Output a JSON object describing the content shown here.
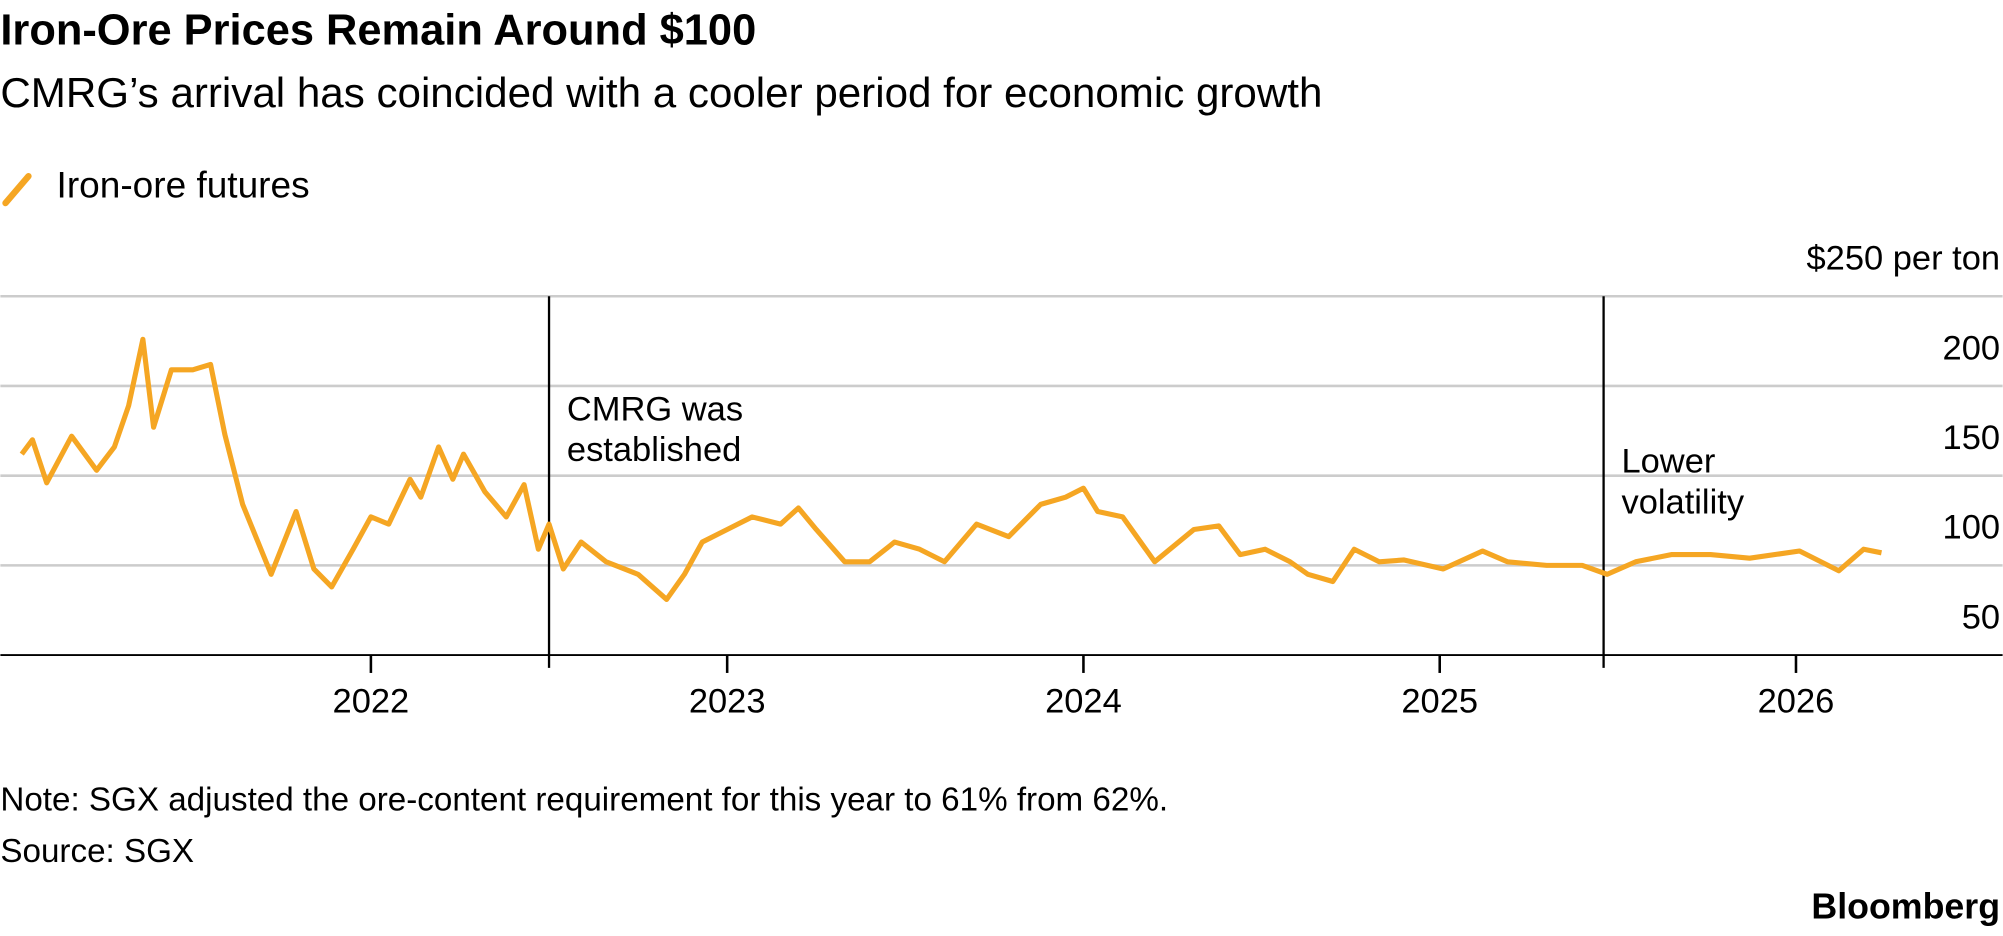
{
  "chart_data": {
    "type": "line",
    "title": "Iron-Ore Prices Remain Around $100",
    "subtitle": "CMRG’s arrival has coincided with a cooler period for economic growth",
    "note": "Note: SGX adjusted the ore-content requirement for this year to 61% from 62%.",
    "source": "Source: SGX",
    "brand": "Bloomberg",
    "xlim": [
      2020.96,
      2026.58
    ],
    "xticks": [
      2022,
      2023,
      2024,
      2025,
      2026
    ],
    "ylim": [
      50,
      250
    ],
    "yticks": [
      50,
      100,
      150,
      200,
      {
        "value": 250,
        "label": "$250 per ton"
      }
    ],
    "grid": true,
    "annotations": [
      {
        "x": 2022.5,
        "lines": [
          "CMRG was",
          "established"
        ]
      },
      {
        "x": 2025.46,
        "lines": [
          "Lower",
          "volatility"
        ]
      }
    ],
    "x": [
      2021.02,
      2021.05,
      2021.09,
      2021.16,
      2021.23,
      2021.28,
      2021.32,
      2021.36,
      2021.39,
      2021.44,
      2021.5,
      2021.55,
      2021.59,
      2021.64,
      2021.72,
      2021.79,
      2021.84,
      2021.89,
      2021.95,
      2022.0,
      2022.05,
      2022.11,
      2022.14,
      2022.19,
      2022.23,
      2022.26,
      2022.32,
      2022.38,
      2022.43,
      2022.47,
      2022.5,
      2022.54,
      2022.59,
      2022.66,
      2022.75,
      2022.83,
      2022.88,
      2022.93,
      2023.0,
      2023.07,
      2023.15,
      2023.2,
      2023.25,
      2023.33,
      2023.4,
      2023.47,
      2023.54,
      2023.61,
      2023.7,
      2023.79,
      2023.88,
      2023.95,
      2024.0,
      2024.04,
      2024.11,
      2024.2,
      2024.31,
      2024.38,
      2024.44,
      2024.51,
      2024.58,
      2024.63,
      2024.7,
      2024.76,
      2024.83,
      2024.9,
      2025.01,
      2025.12,
      2025.19,
      2025.3,
      2025.4,
      2025.47,
      2025.55,
      2025.65,
      2025.76,
      2025.87,
      2026.01,
      2026.12,
      2026.19,
      2026.24
    ],
    "series": [
      {
        "name": "Iron-ore futures",
        "color": "#f5a623",
        "values": [
          162,
          170,
          146,
          172,
          153,
          166,
          189,
          226,
          177,
          209,
          209,
          212,
          173,
          134,
          95,
          130,
          98,
          88,
          109,
          127,
          123,
          148,
          138,
          166,
          148,
          162,
          141,
          127,
          145,
          109,
          123,
          98,
          113,
          102,
          95,
          81,
          95,
          113,
          120,
          127,
          123,
          132,
          120,
          102,
          102,
          113,
          109,
          102,
          123,
          116,
          134,
          138,
          143,
          130,
          127,
          102,
          120,
          122,
          106,
          109,
          102,
          95,
          91,
          109,
          102,
          103,
          98,
          108,
          102,
          100,
          100,
          95,
          102,
          106,
          106,
          104,
          108,
          97,
          109,
          107
        ]
      }
    ]
  }
}
